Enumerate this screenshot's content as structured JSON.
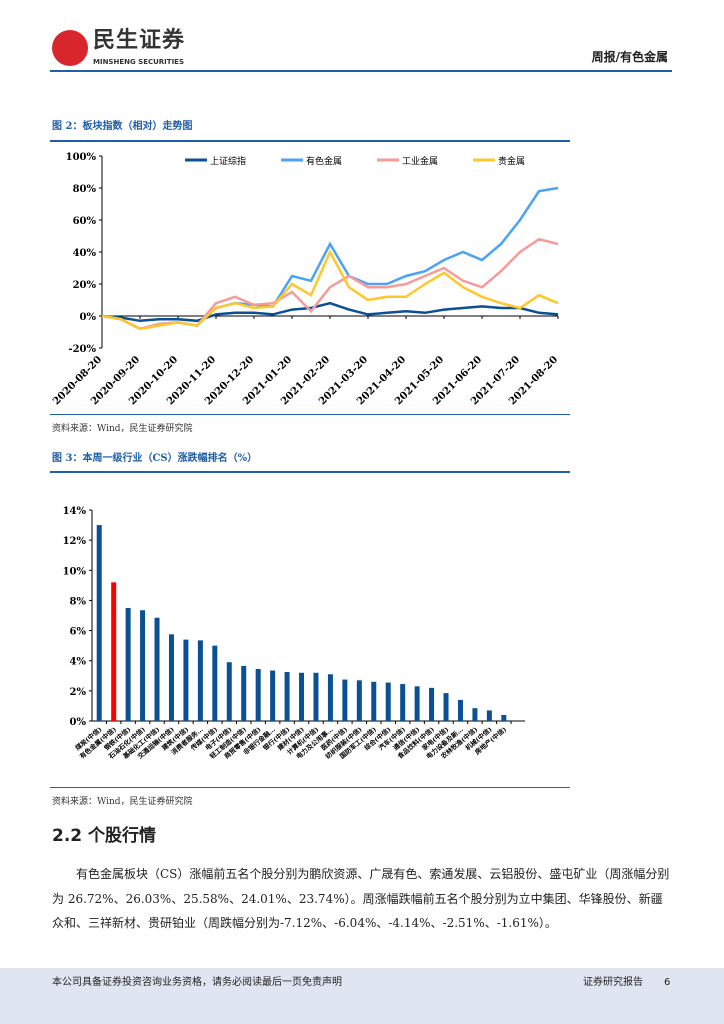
{
  "header": {
    "brand": "民生证券",
    "brand_en": "MINSHENG SECURITIES",
    "right": "周报/有色金属"
  },
  "fig2": {
    "title": "图 2：板块指数（相对）走势图",
    "source": "资料来源：Wind，民生证券研究院"
  },
  "fig3": {
    "title": "图 3：本周一级行业（CS）涨跌幅排名（%）",
    "source": "资料来源：Wind，民生证券研究院"
  },
  "chart_data": [
    {
      "type": "line",
      "legend": "top",
      "ylim": [
        -20,
        100
      ],
      "yticks": [
        "-20%",
        "0%",
        "20%",
        "40%",
        "60%",
        "80%",
        "100%"
      ],
      "xticks": [
        "2020-08-20",
        "2020-09-20",
        "2020-10-20",
        "2020-11-20",
        "2020-12-20",
        "2021-01-20",
        "2021-02-20",
        "2021-03-20",
        "2021-04-20",
        "2021-05-20",
        "2021-06-20",
        "2021-07-20",
        "2021-08-20"
      ],
      "series": [
        {
          "name": "上证综指",
          "color": "#0b4f94",
          "values": [
            0,
            -1,
            -3,
            -2,
            -2,
            -3,
            1,
            2,
            2,
            1,
            4,
            5,
            8,
            4,
            1,
            2,
            3,
            2,
            4,
            5,
            6,
            5,
            5,
            2,
            1
          ]
        },
        {
          "name": "有色金属",
          "color": "#4aa3f4",
          "values": [
            0,
            -2,
            -8,
            -5,
            -4,
            -6,
            5,
            8,
            7,
            6,
            25,
            22,
            45,
            25,
            20,
            20,
            25,
            28,
            35,
            40,
            35,
            45,
            60,
            78,
            80
          ]
        },
        {
          "name": "工业金属",
          "color": "#f79a9a",
          "values": [
            0,
            -2,
            -8,
            -5,
            -4,
            -6,
            8,
            12,
            7,
            8,
            15,
            3,
            18,
            25,
            18,
            18,
            20,
            25,
            30,
            22,
            18,
            28,
            40,
            48,
            45
          ]
        },
        {
          "name": "贵金属",
          "color": "#ffc72c",
          "values": [
            0,
            -2,
            -8,
            -6,
            -4,
            -6,
            5,
            8,
            5,
            6,
            20,
            13,
            40,
            18,
            10,
            12,
            12,
            20,
            27,
            18,
            12,
            8,
            5,
            13,
            8
          ]
        }
      ]
    },
    {
      "type": "bar",
      "ylim": [
        0,
        14
      ],
      "yticks": [
        "0%",
        "2%",
        "4%",
        "6%",
        "8%",
        "10%",
        "12%",
        "14%"
      ],
      "color": "#0b4f94",
      "highlight_color": "#ff0000",
      "highlight_index": 1,
      "categories": [
        "煤炭(中信)",
        "有色金属(中信)",
        "钢铁(中信)",
        "石油石化(中信)",
        "基础化工(中信)",
        "交通运输(中信)",
        "建筑(中信)",
        "消费者服务…",
        "传媒(中信)",
        "电子(中信)",
        "轻工制造(中信)",
        "商贸零售(中信)",
        "非银行金融…",
        "银行(中信)",
        "建材(中信)",
        "计算机(中信)",
        "电力及公用事…",
        "医药(中信)",
        "纺织服装(中信)",
        "国防军工(中信)",
        "综合(中信)",
        "汽车(中信)",
        "通信(中信)",
        "食品饮料(中信)",
        "家电(中信)",
        "电力设备及新…",
        "农林牧渔(中信)",
        "机械(中信)",
        "房地产(中信)"
      ],
      "values": [
        13.0,
        9.2,
        7.5,
        7.35,
        6.85,
        5.75,
        5.4,
        5.35,
        5.0,
        3.9,
        3.65,
        3.45,
        3.35,
        3.25,
        3.2,
        3.2,
        3.1,
        2.75,
        2.7,
        2.6,
        2.55,
        2.45,
        2.3,
        2.2,
        1.85,
        1.4,
        0.85,
        0.7,
        0.4
      ]
    }
  ],
  "section": {
    "title": "2.2 个股行情",
    "paragraph": "有色金属板块（CS）涨幅前五名个股分别为鹏欣资源、广晟有色、索通发展、云铝股份、盛屯矿业（周涨幅分别为 26.72%、26.03%、25.58%、24.01%、23.74%）。周涨幅跌幅前五名个股分别为立中集团、华锋股份、新疆众和、三祥新材、贵研铂业（周跌幅分别为-7.12%、-6.04%、-4.14%、-2.51%、-1.61%）。"
  },
  "footer": {
    "left": "本公司具备证券投资咨询业务资格，请务必阅读最后一页免责声明",
    "right": "证券研究报告",
    "page": "6"
  }
}
